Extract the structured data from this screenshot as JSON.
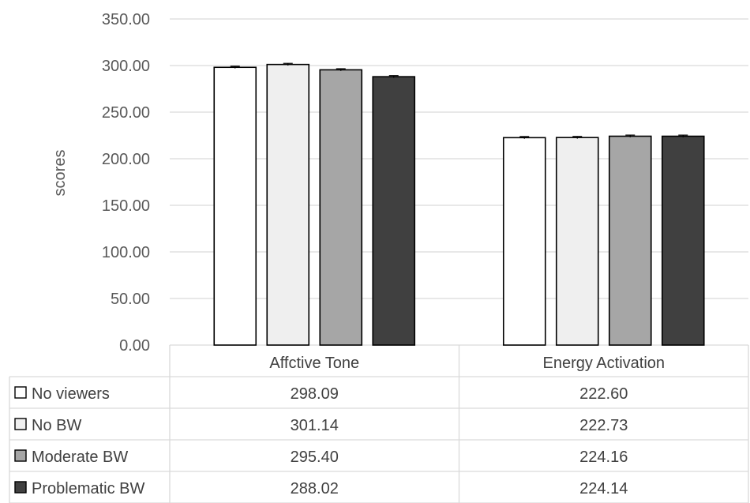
{
  "chart_data": {
    "type": "bar",
    "ylabel": "scores",
    "ylim": [
      0,
      350
    ],
    "ytick_step": 50,
    "ytick_labels": [
      "0.00",
      "50.00",
      "100.00",
      "150.00",
      "200.00",
      "250.00",
      "300.00",
      "350.00"
    ],
    "categories": [
      "Affctive Tone",
      "Energy Activation"
    ],
    "grid": true,
    "error_bars": true,
    "legend": "data-table",
    "series": [
      {
        "name": "No viewers",
        "color": "#ffffff",
        "values": [
          298.09,
          222.6
        ],
        "labels": [
          "298.09",
          "222.60"
        ]
      },
      {
        "name": "No BW",
        "color": "#efefef",
        "values": [
          301.14,
          222.73
        ],
        "labels": [
          "301.14",
          "222.73"
        ]
      },
      {
        "name": "Moderate BW",
        "color": "#a6a6a6",
        "values": [
          295.4,
          224.16
        ],
        "labels": [
          "295.40",
          "224.16"
        ]
      },
      {
        "name": "Problematic BW",
        "color": "#404040",
        "values": [
          288.02,
          224.14
        ],
        "labels": [
          "288.02",
          "224.14"
        ]
      }
    ]
  }
}
